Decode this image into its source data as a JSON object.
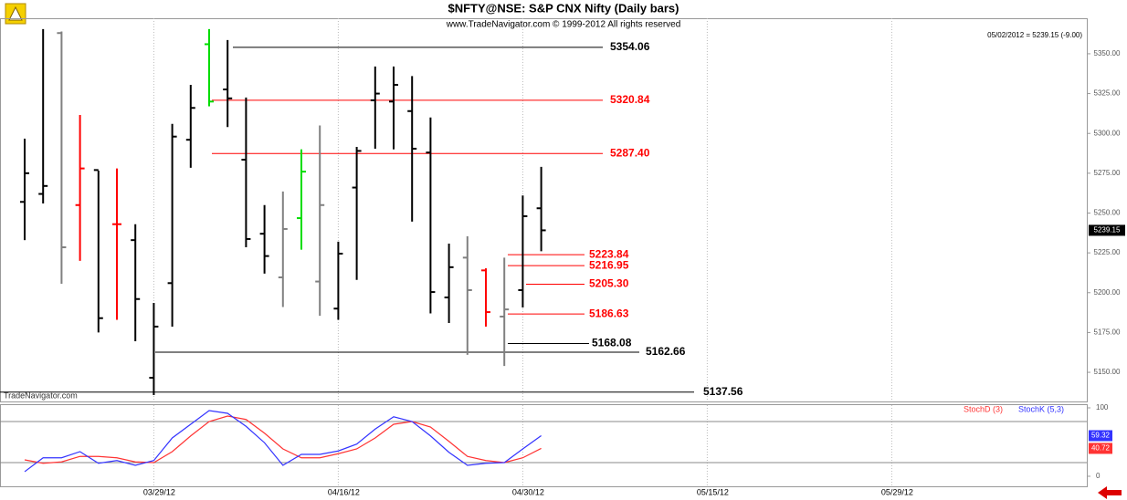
{
  "header": {
    "title": "$NFTY@NSE:  S&P CNX Nifty  (Daily bars)",
    "subtitle": "www.TradeNavigator.com © 1999-2012 All rights reserved",
    "quote": "05/02/2012 = 5239.15 (-9.00)",
    "watermark": "TradeNavigator.com"
  },
  "chart_data": [
    {
      "type": "ohlc",
      "open": [
        5257,
        5262,
        5363,
        5255,
        5277,
        5243,
        5233,
        5146.6,
        5206,
        5296,
        5356,
        5327.6,
        5283.5,
        5237,
        5209.6,
        5246.8,
        5207,
        5190,
        5266,
        5320.8,
        5320,
        5314,
        5288,
        5197,
        5222,
        5214,
        5185,
        5201.6,
        5253,
        null,
        null,
        null,
        null,
        null,
        null,
        null,
        null,
        null,
        null,
        null,
        null,
        null,
        null,
        null,
        null,
        null,
        null,
        null,
        null,
        null,
        null,
        null,
        null,
        null,
        null,
        null,
        null,
        null
      ],
      "high": [
        5296.7,
        5365.5,
        5364,
        5311.6,
        5276.6,
        5278,
        5243,
        5193.6,
        5306,
        5330.5,
        5365.5,
        5358.6,
        5322.5,
        5255,
        5263.5,
        5290,
        5305,
        5232,
        5291.5,
        5342,
        5342,
        5336,
        5310,
        5230.8,
        5235.4,
        5215.3,
        5222,
        5261,
        5279,
        null,
        null,
        null,
        null,
        null,
        null,
        null,
        null,
        null,
        null,
        null,
        null,
        null,
        null,
        null,
        null,
        null,
        null,
        null,
        null,
        null,
        null,
        null,
        null,
        null,
        null,
        null,
        null,
        null
      ],
      "low": [
        5233,
        5256,
        5205.6,
        5220,
        5175,
        5183,
        5169.5,
        5135.7,
        5178.7,
        5278.4,
        5317,
        5304,
        5228.5,
        5212,
        5191,
        5227,
        5185.5,
        5183,
        5208,
        5290.4,
        5290,
        5244.6,
        5187,
        5181,
        5161,
        5178.7,
        5154,
        5190.7,
        5226,
        null,
        null,
        null,
        null,
        null,
        null,
        null,
        null,
        null,
        null,
        null,
        null,
        null,
        null,
        null,
        null,
        null,
        null,
        null,
        null,
        null,
        null,
        null,
        null,
        null,
        null,
        null,
        null,
        null
      ],
      "close": [
        5275,
        5267,
        5228.5,
        5278,
        5184,
        5243,
        5196,
        5178.7,
        5298,
        5316,
        5320,
        5322,
        5233.7,
        5223,
        5240,
        5276,
        5255,
        5224.5,
        5289,
        5325,
        5330.5,
        5290.4,
        5200.4,
        5216,
        5201.6,
        5187.8,
        5189.5,
        5248,
        5239.15,
        null,
        null,
        null,
        null,
        null,
        null,
        null,
        null,
        null,
        null,
        null,
        null,
        null,
        null,
        null,
        null,
        null,
        null,
        null,
        null,
        null,
        null,
        null,
        null,
        null,
        null,
        null,
        null,
        null
      ],
      "colors": [
        "#000000",
        "#000000",
        "#808080",
        "#ff0000",
        "#000000",
        "#ff0000",
        "#000000",
        "#000000",
        "#000000",
        "#000000",
        "#00dd00",
        "#000000",
        "#000000",
        "#000000",
        "#808080",
        "#00dd00",
        "#808080",
        "#000000",
        "#000000",
        "#000000",
        "#000000",
        "#000000",
        "#000000",
        "#000000",
        "#808080",
        "#ff0000",
        "#808080",
        "#000000",
        "#000000",
        null,
        null,
        null,
        null,
        null,
        null,
        null,
        null,
        null,
        null,
        null,
        null,
        null,
        null,
        null,
        null,
        null,
        null,
        null,
        null,
        null,
        null,
        null,
        null,
        null,
        null,
        null,
        null,
        null
      ],
      "ylim": [
        5131.7,
        5372.3
      ],
      "yticks": [
        {
          "value": 5150,
          "label": "5150.00"
        },
        {
          "value": 5175,
          "label": "5175.00"
        },
        {
          "value": 5200,
          "label": "5200.00"
        },
        {
          "value": 5225,
          "label": "5225.00"
        },
        {
          "value": 5250,
          "label": "5250.00"
        },
        {
          "value": 5275,
          "label": "5275.00"
        },
        {
          "value": 5300,
          "label": "5300.00"
        },
        {
          "value": 5325,
          "label": "5325.00"
        },
        {
          "value": 5350,
          "label": "5350.00"
        }
      ],
      "levels": [
        {
          "value": 5354.06,
          "label": "5354.06",
          "color": "#000000"
        },
        {
          "value": 5320.84,
          "label": "5320.84",
          "color": "#ff0000"
        },
        {
          "value": 5287.4,
          "label": "5287.40",
          "color": "#ff0000"
        },
        {
          "value": 5223.84,
          "label": "5223.84",
          "color": "#ff0000"
        },
        {
          "value": 5216.95,
          "label": "5216.95",
          "color": "#ff0000"
        },
        {
          "value": 5205.3,
          "label": "5205.30",
          "color": "#ff0000"
        },
        {
          "value": 5186.63,
          "label": "5186.63",
          "color": "#ff0000"
        },
        {
          "value": 5168.08,
          "label": "5168.08",
          "color": "#000000"
        },
        {
          "value": 5162.66,
          "label": "5162.66",
          "color": "#000000"
        },
        {
          "value": 5137.56,
          "label": "5137.56",
          "color": "#000000"
        }
      ]
    },
    {
      "type": "line",
      "categories": [
        null,
        null,
        null,
        null,
        null,
        null,
        null,
        "03/29/12",
        null,
        null,
        null,
        null,
        null,
        null,
        null,
        null,
        null,
        "04/16/12",
        null,
        null,
        null,
        null,
        null,
        null,
        null,
        null,
        null,
        "04/30/12",
        null,
        null,
        null,
        null,
        null,
        null,
        null,
        null,
        null,
        "05/15/12",
        null,
        null,
        null,
        null,
        null,
        null,
        null,
        null,
        null,
        "05/29/12",
        null,
        null,
        null,
        null,
        null,
        null,
        null,
        null,
        null,
        null
      ],
      "series": [
        {
          "name": "StochD (3)",
          "color": "#ff3333",
          "values": [
            24,
            19,
            21,
            29,
            29,
            27,
            21,
            20,
            36,
            59,
            80,
            88,
            83,
            63,
            40,
            27,
            27,
            33,
            40,
            56,
            76,
            80,
            72,
            51,
            29,
            23,
            20,
            27,
            40.72,
            null,
            null,
            null,
            null,
            null,
            null,
            null,
            null,
            null,
            null,
            null,
            null,
            null,
            null,
            null,
            null,
            null,
            null,
            null,
            null,
            null,
            null,
            null,
            null,
            null,
            null,
            null,
            null,
            null
          ]
        },
        {
          "name": "StochK (5,3)",
          "color": "#3333ff",
          "values": [
            6.7,
            27,
            27,
            36,
            19,
            23,
            16,
            23,
            56,
            76,
            96,
            92,
            73,
            49,
            16,
            32,
            32,
            37,
            47,
            69,
            87,
            80,
            59,
            35,
            16,
            19,
            20,
            40,
            59.32,
            null,
            null,
            null,
            null,
            null,
            null,
            null,
            null,
            null,
            null,
            null,
            null,
            null,
            null,
            null,
            null,
            null,
            null,
            null,
            null,
            null,
            null,
            null,
            null,
            null,
            null,
            null,
            null,
            null
          ]
        }
      ],
      "ylim": [
        -14.7,
        104
      ],
      "yticks": [
        0,
        100
      ],
      "reference_lines": [
        80,
        20
      ],
      "grid": true
    }
  ]
}
